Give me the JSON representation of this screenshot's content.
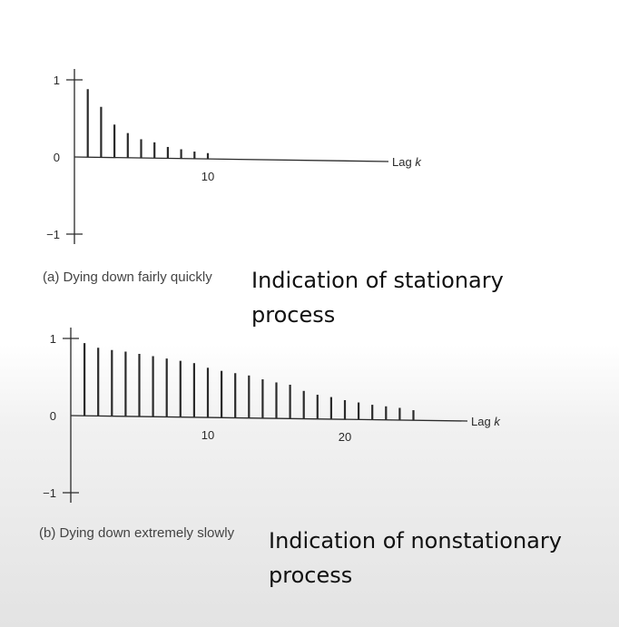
{
  "chart_data": [
    {
      "type": "bar",
      "panel": "a",
      "caption": "(a) Dying down fairly quickly",
      "xlabel_prefix": "Lag ",
      "xlabel_var": "k",
      "x": [
        1,
        2,
        3,
        4,
        5,
        6,
        7,
        8,
        9,
        10
      ],
      "values": [
        0.88,
        0.65,
        0.42,
        0.31,
        0.23,
        0.19,
        0.13,
        0.1,
        0.07,
        0.05
      ],
      "xticks": [
        10
      ],
      "yticks": [
        -1,
        0,
        1
      ],
      "ylim": [
        -1,
        1
      ],
      "grid": false,
      "annotation": "Indication of stationary process"
    },
    {
      "type": "bar",
      "panel": "b",
      "caption": "(b) Dying down extremely slowly",
      "xlabel_prefix": "Lag ",
      "xlabel_var": "k",
      "x": [
        1,
        2,
        3,
        4,
        5,
        6,
        7,
        8,
        9,
        10,
        11,
        12,
        13,
        14,
        15,
        16,
        17,
        18,
        19,
        20,
        21,
        22,
        23,
        24,
        25
      ],
      "values": [
        0.94,
        0.88,
        0.85,
        0.83,
        0.8,
        0.77,
        0.74,
        0.71,
        0.68,
        0.62,
        0.58,
        0.55,
        0.52,
        0.47,
        0.43,
        0.4,
        0.32,
        0.27,
        0.24,
        0.2,
        0.17,
        0.14,
        0.12,
        0.1,
        0.07
      ],
      "xticks": [
        10,
        20
      ],
      "yticks": [
        -1,
        0,
        1
      ],
      "ylim": [
        -1,
        1
      ],
      "grid": false,
      "annotation": "Indication of nonstationary process"
    }
  ]
}
